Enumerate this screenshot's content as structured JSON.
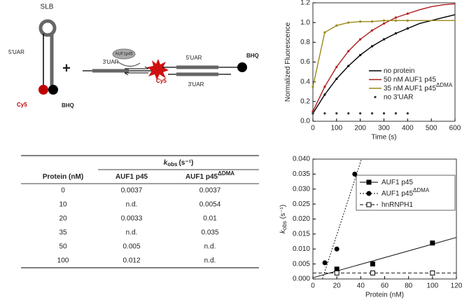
{
  "diagram": {
    "hairpin_label": "SLB",
    "hairpin_arm": "5'UAR",
    "dye": "Cy5",
    "quencher": "BHQ",
    "plus": "+",
    "strand": "3'UAR",
    "protein": "AUF1p45",
    "duplex_top": "5'UAR",
    "duplex_dye": "Cy5",
    "duplex_bottom": "3'UAR",
    "duplex_quencher": "BHQ"
  },
  "table": {
    "title": "k",
    "title_subscript": "obs",
    "title_unit": "(s⁻¹)",
    "columns": [
      {
        "text": "Protein (nM)"
      },
      {
        "text": "AUF1 p45"
      },
      {
        "text": "AUF1 p45",
        "superscript": "ΔDMA"
      }
    ],
    "rows": [
      [
        "0",
        "0.0037",
        "0.0037"
      ],
      [
        "10",
        "n.d.",
        "0.0054"
      ],
      [
        "20",
        "0.0033",
        "0.01"
      ],
      [
        "35",
        "n.d.",
        "0.035"
      ],
      [
        "50",
        "0.005",
        "n.d."
      ],
      [
        "100",
        "0.012",
        "n.d."
      ]
    ]
  },
  "chart_data": [
    {
      "type": "line",
      "xlabel": "Time (s)",
      "ylabel": "Normalized Fluorescence",
      "xlim": [
        0,
        600
      ],
      "xticks": [
        0,
        100,
        200,
        300,
        400,
        500,
        600
      ],
      "ylim": [
        0,
        1.2
      ],
      "yticks": [
        {
          "value": 0,
          "label": "0.0"
        },
        {
          "value": 0.2,
          "label": "0.2"
        },
        {
          "value": 0.4,
          "label": "0.4"
        },
        {
          "value": 0.6,
          "label": "0.6"
        },
        {
          "value": 0.8,
          "label": "0.8"
        },
        {
          "value": 1,
          "label": "1.0"
        },
        {
          "value": 1.2,
          "label": "1.2"
        }
      ],
      "x": [
        0,
        50,
        100,
        150,
        200,
        250,
        300,
        350,
        400
      ],
      "fit_x": [
        0,
        50,
        100,
        150,
        200,
        250,
        300,
        350,
        400,
        450,
        500,
        550,
        600
      ],
      "series": [
        {
          "name": "no protein",
          "color": "#000000",
          "values": [
            0.08,
            0.27,
            0.43,
            0.56,
            0.67,
            0.76,
            0.83,
            0.89,
            0.94
          ],
          "fit": [
            0.08,
            0.27,
            0.43,
            0.56,
            0.67,
            0.76,
            0.83,
            0.89,
            0.94,
            0.99,
            1.02,
            1.05,
            1.08
          ]
        },
        {
          "name": "50 nM AUF1 p45",
          "color": "#b01c1c",
          "values": [
            0.1,
            0.35,
            0.55,
            0.71,
            0.83,
            0.92,
            0.99,
            1.05,
            1.09
          ],
          "fit": [
            0.1,
            0.35,
            0.55,
            0.71,
            0.83,
            0.92,
            0.99,
            1.05,
            1.09,
            1.13,
            1.16,
            1.18,
            1.19
          ]
        },
        {
          "name": "35 nM AUF1 p45",
          "superscript": "ΔDMA",
          "color": "#9a8a1a",
          "values": [
            0.35,
            0.9,
            0.97,
            1.0,
            1.01,
            1.01,
            1.02,
            1.02,
            1.02
          ],
          "fit": [
            0.35,
            0.9,
            0.97,
            1.0,
            1.01,
            1.01,
            1.02,
            1.02,
            1.02,
            1.02,
            1.02,
            1.02,
            1.02
          ]
        },
        {
          "name": "no 3'UAR",
          "color": "#333333",
          "values": [
            0.08,
            0.08,
            0.08,
            0.08,
            0.08,
            0.08,
            0.08,
            0.08,
            0.08
          ]
        }
      ]
    },
    {
      "type": "scatter",
      "xlabel": "Protein (nM)",
      "ylabel": "k",
      "ylabel_subscript": "obs",
      "ylabel_unit": "(s⁻¹)",
      "xlim": [
        0,
        120
      ],
      "xticks": [
        0,
        20,
        40,
        60,
        80,
        100,
        120
      ],
      "ylim": [
        0,
        0.04
      ],
      "yticks": [
        {
          "value": 0,
          "label": "0.000"
        },
        {
          "value": 0.005,
          "label": "0.005"
        },
        {
          "value": 0.01,
          "label": "0.010"
        },
        {
          "value": 0.015,
          "label": "0.015"
        },
        {
          "value": 0.02,
          "label": "0.020"
        },
        {
          "value": 0.025,
          "label": "0.025"
        },
        {
          "value": 0.03,
          "label": "0.030"
        },
        {
          "value": 0.035,
          "label": "0.035"
        },
        {
          "value": 0.04,
          "label": "0.040"
        }
      ],
      "series": [
        {
          "name": "AUF1 p45",
          "color": "#000000",
          "marker": "square",
          "filled": true,
          "dash": "solid",
          "x": [
            20,
            50,
            100
          ],
          "values": [
            0.0033,
            0.005,
            0.012
          ]
        },
        {
          "name": "AUF1 p45",
          "superscript": "ΔDMA",
          "color": "#000000",
          "marker": "circle",
          "filled": true,
          "dash": "dotted",
          "x": [
            10,
            20,
            35
          ],
          "values": [
            0.0054,
            0.01,
            0.035
          ]
        },
        {
          "name": "hnRNPH1",
          "color": "#000000",
          "marker": "square",
          "filled": false,
          "dash": "dashed",
          "x": [
            20,
            50,
            100
          ],
          "values": [
            0.002,
            0.002,
            0.002
          ]
        }
      ]
    }
  ]
}
